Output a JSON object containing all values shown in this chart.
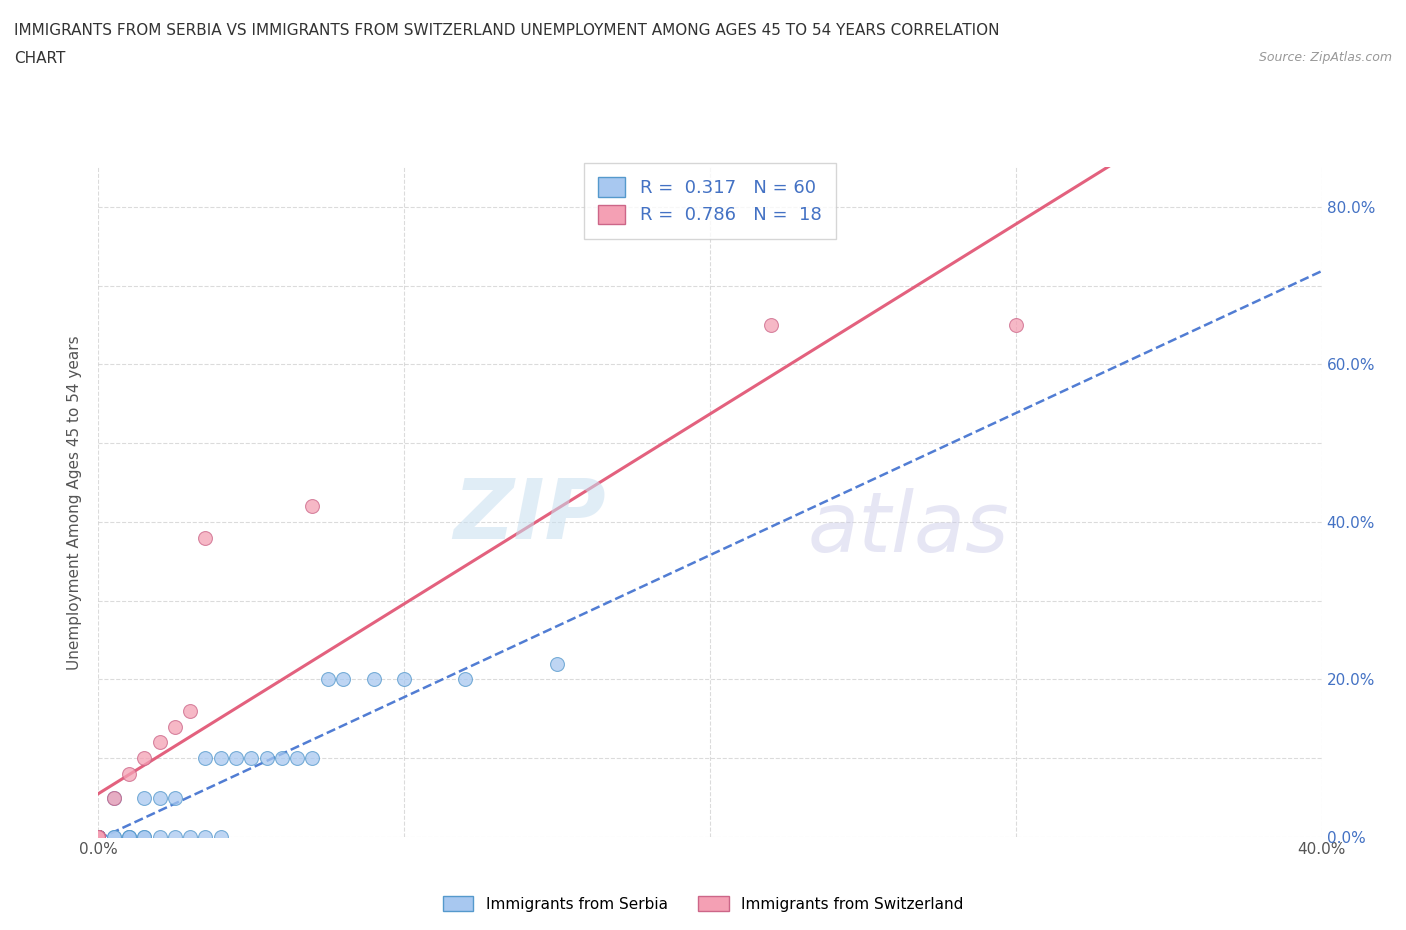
{
  "title_line1": "IMMIGRANTS FROM SERBIA VS IMMIGRANTS FROM SWITZERLAND UNEMPLOYMENT AMONG AGES 45 TO 54 YEARS CORRELATION",
  "title_line2": "CHART",
  "source_text": "Source: ZipAtlas.com",
  "ylabel": "Unemployment Among Ages 45 to 54 years",
  "xlim": [
    0.0,
    0.4
  ],
  "ylim": [
    0.0,
    0.85
  ],
  "serbia_color": "#a8c8f0",
  "serbia_edge_color": "#5599cc",
  "switzerland_color": "#f4a0b4",
  "switzerland_edge_color": "#cc6688",
  "trend_serbia_color": "#3366cc",
  "trend_switzerland_color": "#e05070",
  "R_serbia": 0.317,
  "N_serbia": 60,
  "R_switzerland": 0.786,
  "N_switzerland": 18,
  "serbia_x": [
    0.0,
    0.0,
    0.0,
    0.0,
    0.0,
    0.0,
    0.0,
    0.0,
    0.0,
    0.0,
    0.0,
    0.0,
    0.0,
    0.0,
    0.0,
    0.0,
    0.0,
    0.0,
    0.0,
    0.0,
    0.0,
    0.0,
    0.0,
    0.0,
    0.0,
    0.0,
    0.0,
    0.0,
    0.0,
    0.0,
    0.005,
    0.005,
    0.01,
    0.01,
    0.01,
    0.015,
    0.015,
    0.02,
    0.025,
    0.03,
    0.035,
    0.04,
    0.005,
    0.015,
    0.02,
    0.025,
    0.035,
    0.04,
    0.045,
    0.05,
    0.055,
    0.06,
    0.065,
    0.07,
    0.075,
    0.08,
    0.09,
    0.1,
    0.12,
    0.15
  ],
  "serbia_y": [
    0.0,
    0.0,
    0.0,
    0.0,
    0.0,
    0.0,
    0.0,
    0.0,
    0.0,
    0.0,
    0.0,
    0.0,
    0.0,
    0.0,
    0.0,
    0.0,
    0.0,
    0.0,
    0.0,
    0.0,
    0.0,
    0.0,
    0.0,
    0.0,
    0.0,
    0.0,
    0.0,
    0.0,
    0.0,
    0.0,
    0.0,
    0.0,
    0.0,
    0.0,
    0.0,
    0.0,
    0.0,
    0.0,
    0.0,
    0.0,
    0.0,
    0.0,
    0.05,
    0.05,
    0.05,
    0.05,
    0.1,
    0.1,
    0.1,
    0.1,
    0.1,
    0.1,
    0.1,
    0.1,
    0.2,
    0.2,
    0.2,
    0.2,
    0.2,
    0.22
  ],
  "switzerland_x": [
    0.0,
    0.0,
    0.0,
    0.0,
    0.0,
    0.0,
    0.0,
    0.0,
    0.005,
    0.01,
    0.015,
    0.02,
    0.025,
    0.03,
    0.035,
    0.07,
    0.22,
    0.3
  ],
  "switzerland_y": [
    0.0,
    0.0,
    0.0,
    0.0,
    0.0,
    0.0,
    0.0,
    0.0,
    0.05,
    0.08,
    0.1,
    0.12,
    0.14,
    0.16,
    0.38,
    0.42,
    0.65,
    0.65
  ],
  "right_axis_ticks": [
    0.0,
    0.1,
    0.2,
    0.3,
    0.4,
    0.5,
    0.6,
    0.7,
    0.8
  ],
  "right_axis_labels": [
    "0.0%",
    "",
    "20.0%",
    "",
    "40.0%",
    "",
    "60.0%",
    "",
    "80.0%"
  ],
  "x_ticks": [
    0.0,
    0.1,
    0.2,
    0.3,
    0.4
  ],
  "x_labels": [
    "0.0%",
    "",
    "",
    "",
    "40.0%"
  ],
  "axis_label_color": "#4472C4",
  "grid_color": "#cccccc"
}
